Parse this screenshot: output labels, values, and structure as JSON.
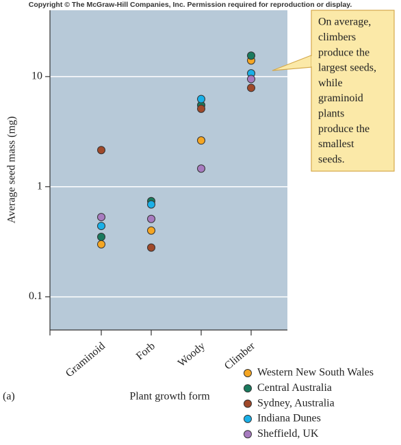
{
  "chart_data": {
    "type": "scatter",
    "credit": "Copyright © The McGraw-Hill Companies, Inc. Permission required for reproduction or display.",
    "panel_label": "(a)",
    "x_label": "Plant growth form",
    "y_label": "Average seed mass (mg)",
    "categories": [
      "Graminoid",
      "Forb",
      "Woody",
      "Climber"
    ],
    "yscale": "log",
    "ylim": [
      0.05,
      40
    ],
    "yticks": [
      0.1,
      1,
      10
    ],
    "grid": true,
    "series": [
      {
        "name": "Western New South Wales",
        "color": "#f5a623",
        "values": [
          0.3,
          0.4,
          2.63,
          14.0
        ]
      },
      {
        "name": "Central Australia",
        "color": "#1a7a5e",
        "values": [
          0.35,
          0.74,
          5.5,
          15.5
        ]
      },
      {
        "name": "Sydney, Australia",
        "color": "#a0492a",
        "values": [
          2.15,
          0.28,
          5.1,
          7.9
        ]
      },
      {
        "name": "Indiana Dunes",
        "color": "#1ab0e8",
        "values": [
          0.44,
          0.69,
          6.25,
          10.7
        ]
      },
      {
        "name": "Sheffield, UK",
        "color": "#a77bbf",
        "values": [
          0.53,
          0.51,
          1.46,
          9.5
        ]
      }
    ],
    "annotation": [
      "On average,",
      "climbers",
      "produce the",
      "largest seeds,",
      "while",
      "graminoid",
      "plants",
      "produce the",
      "smallest",
      "seeds."
    ]
  }
}
